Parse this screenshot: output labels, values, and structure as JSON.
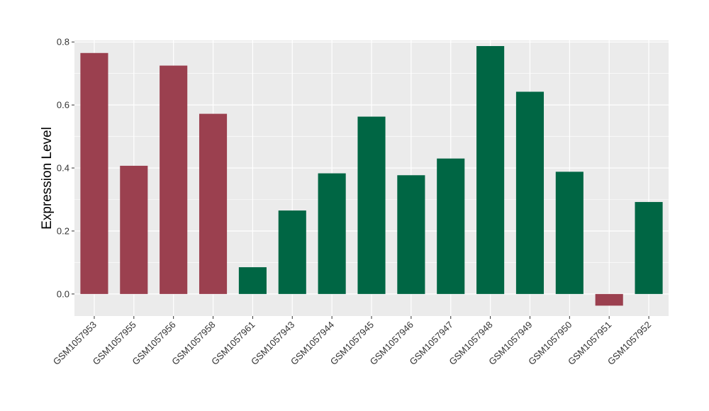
{
  "chart_data": {
    "type": "bar",
    "title": "",
    "xlabel": "",
    "ylabel": "Expression Level",
    "ylim": [
      -0.07,
      0.805
    ],
    "yticks": [
      0.0,
      0.2,
      0.4,
      0.6,
      0.8
    ],
    "ytick_labels": [
      "0.0",
      "0.2",
      "0.4",
      "0.6",
      "0.8"
    ],
    "grid": true,
    "legend": "none",
    "panel_color": "#EBEBEB",
    "grid_color": "#FFFFFF",
    "categories": [
      "GSM1057953",
      "GSM1057955",
      "GSM1057956",
      "GSM1057958",
      "GSM1057961",
      "GSM1057943",
      "GSM1057944",
      "GSM1057945",
      "GSM1057946",
      "GSM1057947",
      "GSM1057948",
      "GSM1057949",
      "GSM1057950",
      "GSM1057951",
      "GSM1057952"
    ],
    "values": [
      0.765,
      0.407,
      0.725,
      0.572,
      0.085,
      0.265,
      0.383,
      0.563,
      0.377,
      0.43,
      0.787,
      0.642,
      0.388,
      -0.037,
      0.292
    ],
    "colors": [
      "#9B404F",
      "#9B404F",
      "#9B404F",
      "#9B404F",
      "#006644",
      "#006644",
      "#006644",
      "#006644",
      "#006644",
      "#006644",
      "#006644",
      "#006644",
      "#006644",
      "#9B404F",
      "#006644"
    ]
  }
}
